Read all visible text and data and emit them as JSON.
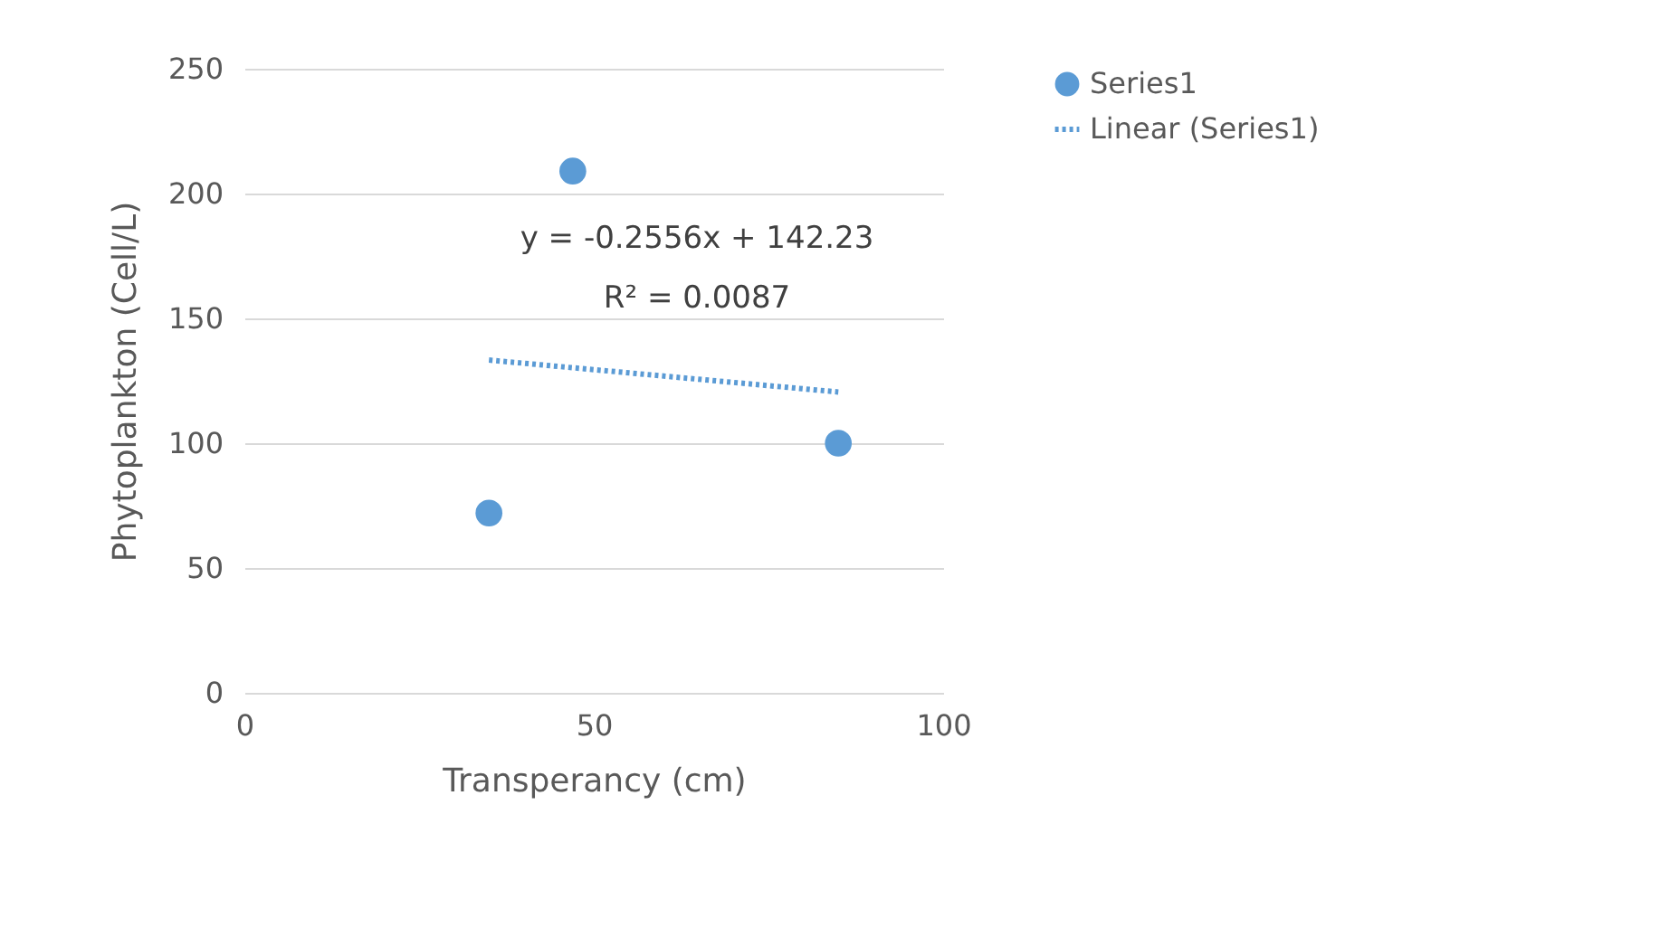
{
  "chart_data": {
    "type": "scatter",
    "xlabel": "Transperancy (cm)",
    "ylabel": "Phytoplankton (Cell/L)",
    "series": [
      {
        "name": "Series1",
        "type": "scatter",
        "color": "#5b9bd5",
        "x": [
          35,
          47,
          85
        ],
        "values": [
          72,
          209,
          100
        ],
        "marker": "circle"
      },
      {
        "name": "Linear (Series1)",
        "type": "line",
        "color": "#5b9bd5",
        "x": [
          35,
          85
        ],
        "values": [
          133.3,
          120.5
        ],
        "line_style": "dotted"
      }
    ],
    "annotations": [
      "y = -0.2556x + 142.23",
      "R² = 0.0087"
    ],
    "xlim": [
      0,
      100
    ],
    "xticks": [
      0,
      50,
      100
    ],
    "ylim": [
      0,
      250
    ],
    "yticks": [
      0,
      50,
      100,
      150,
      200,
      250
    ],
    "grid": "y",
    "legend": "right"
  }
}
